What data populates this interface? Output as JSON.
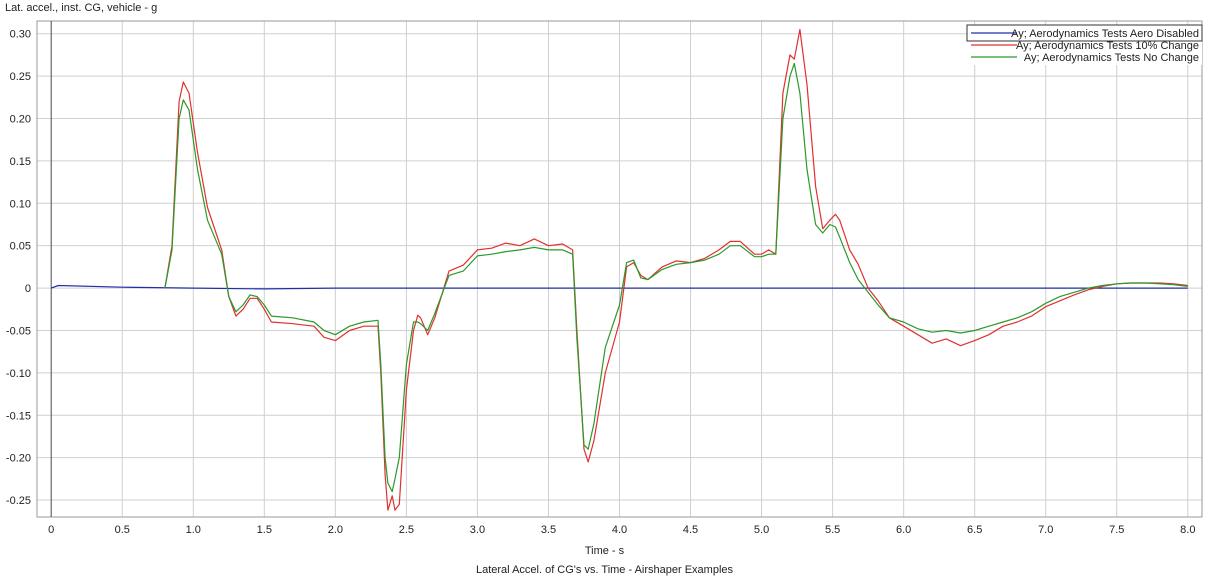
{
  "chart_data": {
    "type": "line",
    "ylabel": "Lat. accel., inst. CG, vehicle - g",
    "xlabel": "Time - s",
    "title": "Lateral Accel. of CG's vs. Time - Airshaper Examples",
    "xlim": [
      -0.1,
      8.1
    ],
    "ylim": [
      -0.27,
      0.315
    ],
    "xticks": [
      0,
      0.5,
      1.0,
      1.5,
      2.0,
      2.5,
      3.0,
      3.5,
      4.0,
      4.5,
      5.0,
      5.5,
      6.0,
      6.5,
      7.0,
      7.5,
      8.0
    ],
    "xtick_labels": [
      "0",
      "0.5",
      "1.0",
      "1.5",
      "2.0",
      "2.5",
      "3.0",
      "3.5",
      "4.0",
      "4.5",
      "5.0",
      "5.5",
      "6.0",
      "6.5",
      "7.0",
      "7.5",
      "8.0"
    ],
    "yticks": [
      0.3,
      0.25,
      0.2,
      0.15,
      0.1,
      0.05,
      0,
      -0.05,
      -0.1,
      -0.15,
      -0.2,
      -0.25
    ],
    "ytick_labels": [
      "0.30",
      "0.25",
      "0.20",
      "0.15",
      "0.10",
      "0.05",
      "0",
      "-0.05",
      "-0.10",
      "-0.15",
      "-0.20",
      "-0.25"
    ],
    "grid": true,
    "legend_position": "top-right",
    "series": [
      {
        "name": "Ay; Aerodynamics Tests Aero Disabled",
        "color": "#2030a8",
        "points": [
          [
            0,
            0
          ],
          [
            0.05,
            0.003
          ],
          [
            0.5,
            0.001
          ],
          [
            1.0,
            0.0
          ],
          [
            1.5,
            -0.001
          ],
          [
            2.0,
            0.0
          ],
          [
            3.0,
            0.0
          ],
          [
            4.0,
            0.0
          ],
          [
            5.0,
            0.0
          ],
          [
            6.0,
            0.0
          ],
          [
            7.0,
            0.0
          ],
          [
            8.0,
            0.0
          ]
        ]
      },
      {
        "name": "Ay; Aerodynamics Tests 10%  Change",
        "color": "#e03030",
        "points": [
          [
            0.8,
            0.0
          ],
          [
            0.85,
            0.05
          ],
          [
            0.9,
            0.22
          ],
          [
            0.93,
            0.243
          ],
          [
            0.97,
            0.23
          ],
          [
            1.03,
            0.16
          ],
          [
            1.1,
            0.095
          ],
          [
            1.2,
            0.045
          ],
          [
            1.25,
            -0.01
          ],
          [
            1.3,
            -0.033
          ],
          [
            1.35,
            -0.025
          ],
          [
            1.4,
            -0.012
          ],
          [
            1.45,
            -0.012
          ],
          [
            1.5,
            -0.025
          ],
          [
            1.55,
            -0.04
          ],
          [
            1.7,
            -0.042
          ],
          [
            1.85,
            -0.045
          ],
          [
            1.92,
            -0.058
          ],
          [
            2.0,
            -0.062
          ],
          [
            2.1,
            -0.05
          ],
          [
            2.2,
            -0.045
          ],
          [
            2.3,
            -0.045
          ],
          [
            2.32,
            -0.1
          ],
          [
            2.35,
            -0.22
          ],
          [
            2.37,
            -0.262
          ],
          [
            2.4,
            -0.245
          ],
          [
            2.42,
            -0.262
          ],
          [
            2.45,
            -0.255
          ],
          [
            2.5,
            -0.12
          ],
          [
            2.55,
            -0.05
          ],
          [
            2.58,
            -0.032
          ],
          [
            2.6,
            -0.035
          ],
          [
            2.65,
            -0.055
          ],
          [
            2.7,
            -0.035
          ],
          [
            2.8,
            0.02
          ],
          [
            2.9,
            0.027
          ],
          [
            3.0,
            0.045
          ],
          [
            3.1,
            0.047
          ],
          [
            3.2,
            0.053
          ],
          [
            3.3,
            0.05
          ],
          [
            3.4,
            0.058
          ],
          [
            3.5,
            0.05
          ],
          [
            3.6,
            0.052
          ],
          [
            3.67,
            0.045
          ],
          [
            3.7,
            -0.05
          ],
          [
            3.75,
            -0.19
          ],
          [
            3.78,
            -0.205
          ],
          [
            3.82,
            -0.18
          ],
          [
            3.9,
            -0.1
          ],
          [
            4.0,
            -0.04
          ],
          [
            4.05,
            0.025
          ],
          [
            4.1,
            0.03
          ],
          [
            4.15,
            0.015
          ],
          [
            4.2,
            0.01
          ],
          [
            4.3,
            0.025
          ],
          [
            4.4,
            0.032
          ],
          [
            4.5,
            0.03
          ],
          [
            4.6,
            0.035
          ],
          [
            4.7,
            0.045
          ],
          [
            4.78,
            0.055
          ],
          [
            4.85,
            0.055
          ],
          [
            4.95,
            0.04
          ],
          [
            5.0,
            0.04
          ],
          [
            5.05,
            0.045
          ],
          [
            5.1,
            0.04
          ],
          [
            5.15,
            0.23
          ],
          [
            5.2,
            0.275
          ],
          [
            5.23,
            0.27
          ],
          [
            5.27,
            0.305
          ],
          [
            5.32,
            0.24
          ],
          [
            5.38,
            0.12
          ],
          [
            5.43,
            0.07
          ],
          [
            5.48,
            0.08
          ],
          [
            5.52,
            0.087
          ],
          [
            5.55,
            0.08
          ],
          [
            5.62,
            0.045
          ],
          [
            5.68,
            0.028
          ],
          [
            5.75,
            0.0
          ],
          [
            5.82,
            -0.015
          ],
          [
            5.9,
            -0.035
          ],
          [
            6.0,
            -0.045
          ],
          [
            6.1,
            -0.055
          ],
          [
            6.2,
            -0.065
          ],
          [
            6.3,
            -0.06
          ],
          [
            6.4,
            -0.068
          ],
          [
            6.5,
            -0.062
          ],
          [
            6.6,
            -0.055
          ],
          [
            6.7,
            -0.045
          ],
          [
            6.8,
            -0.04
          ],
          [
            6.9,
            -0.033
          ],
          [
            7.0,
            -0.022
          ],
          [
            7.1,
            -0.015
          ],
          [
            7.2,
            -0.008
          ],
          [
            7.3,
            -0.002
          ],
          [
            7.4,
            0.002
          ],
          [
            7.5,
            0.005
          ],
          [
            7.6,
            0.006
          ],
          [
            7.7,
            0.006
          ],
          [
            7.8,
            0.006
          ],
          [
            7.9,
            0.005
          ],
          [
            8.0,
            0.003
          ]
        ]
      },
      {
        "name": "Ay; Aerodynamics Tests No Change",
        "color": "#2a9a2a",
        "points": [
          [
            0.8,
            0.0
          ],
          [
            0.85,
            0.045
          ],
          [
            0.9,
            0.2
          ],
          [
            0.93,
            0.222
          ],
          [
            0.97,
            0.21
          ],
          [
            1.03,
            0.14
          ],
          [
            1.1,
            0.08
          ],
          [
            1.2,
            0.04
          ],
          [
            1.25,
            -0.01
          ],
          [
            1.3,
            -0.028
          ],
          [
            1.35,
            -0.02
          ],
          [
            1.4,
            -0.008
          ],
          [
            1.45,
            -0.01
          ],
          [
            1.5,
            -0.02
          ],
          [
            1.55,
            -0.033
          ],
          [
            1.7,
            -0.035
          ],
          [
            1.85,
            -0.04
          ],
          [
            1.92,
            -0.05
          ],
          [
            2.0,
            -0.055
          ],
          [
            2.1,
            -0.045
          ],
          [
            2.2,
            -0.04
          ],
          [
            2.3,
            -0.038
          ],
          [
            2.32,
            -0.09
          ],
          [
            2.35,
            -0.2
          ],
          [
            2.37,
            -0.23
          ],
          [
            2.4,
            -0.24
          ],
          [
            2.42,
            -0.225
          ],
          [
            2.45,
            -0.2
          ],
          [
            2.5,
            -0.09
          ],
          [
            2.55,
            -0.04
          ],
          [
            2.58,
            -0.04
          ],
          [
            2.6,
            -0.042
          ],
          [
            2.65,
            -0.05
          ],
          [
            2.7,
            -0.03
          ],
          [
            2.8,
            0.015
          ],
          [
            2.9,
            0.02
          ],
          [
            3.0,
            0.038
          ],
          [
            3.1,
            0.04
          ],
          [
            3.2,
            0.043
          ],
          [
            3.3,
            0.045
          ],
          [
            3.4,
            0.048
          ],
          [
            3.5,
            0.045
          ],
          [
            3.6,
            0.045
          ],
          [
            3.67,
            0.04
          ],
          [
            3.7,
            -0.06
          ],
          [
            3.75,
            -0.185
          ],
          [
            3.78,
            -0.19
          ],
          [
            3.82,
            -0.16
          ],
          [
            3.9,
            -0.07
          ],
          [
            4.0,
            -0.02
          ],
          [
            4.05,
            0.03
          ],
          [
            4.1,
            0.033
          ],
          [
            4.15,
            0.012
          ],
          [
            4.2,
            0.01
          ],
          [
            4.3,
            0.022
          ],
          [
            4.4,
            0.028
          ],
          [
            4.5,
            0.03
          ],
          [
            4.6,
            0.033
          ],
          [
            4.7,
            0.04
          ],
          [
            4.78,
            0.05
          ],
          [
            4.85,
            0.05
          ],
          [
            4.95,
            0.037
          ],
          [
            5.0,
            0.037
          ],
          [
            5.05,
            0.04
          ],
          [
            5.1,
            0.04
          ],
          [
            5.15,
            0.2
          ],
          [
            5.2,
            0.25
          ],
          [
            5.23,
            0.265
          ],
          [
            5.27,
            0.23
          ],
          [
            5.32,
            0.14
          ],
          [
            5.38,
            0.075
          ],
          [
            5.43,
            0.065
          ],
          [
            5.48,
            0.075
          ],
          [
            5.52,
            0.072
          ],
          [
            5.55,
            0.06
          ],
          [
            5.62,
            0.03
          ],
          [
            5.68,
            0.01
          ],
          [
            5.75,
            -0.005
          ],
          [
            5.82,
            -0.02
          ],
          [
            5.9,
            -0.035
          ],
          [
            6.0,
            -0.04
          ],
          [
            6.1,
            -0.048
          ],
          [
            6.2,
            -0.052
          ],
          [
            6.3,
            -0.05
          ],
          [
            6.4,
            -0.053
          ],
          [
            6.5,
            -0.05
          ],
          [
            6.6,
            -0.045
          ],
          [
            6.7,
            -0.04
          ],
          [
            6.8,
            -0.035
          ],
          [
            6.9,
            -0.028
          ],
          [
            7.0,
            -0.018
          ],
          [
            7.1,
            -0.01
          ],
          [
            7.2,
            -0.005
          ],
          [
            7.3,
            0.0
          ],
          [
            7.4,
            0.003
          ],
          [
            7.5,
            0.005
          ],
          [
            7.6,
            0.006
          ],
          [
            7.7,
            0.006
          ],
          [
            7.8,
            0.005
          ],
          [
            7.9,
            0.004
          ],
          [
            8.0,
            0.002
          ]
        ]
      }
    ]
  }
}
